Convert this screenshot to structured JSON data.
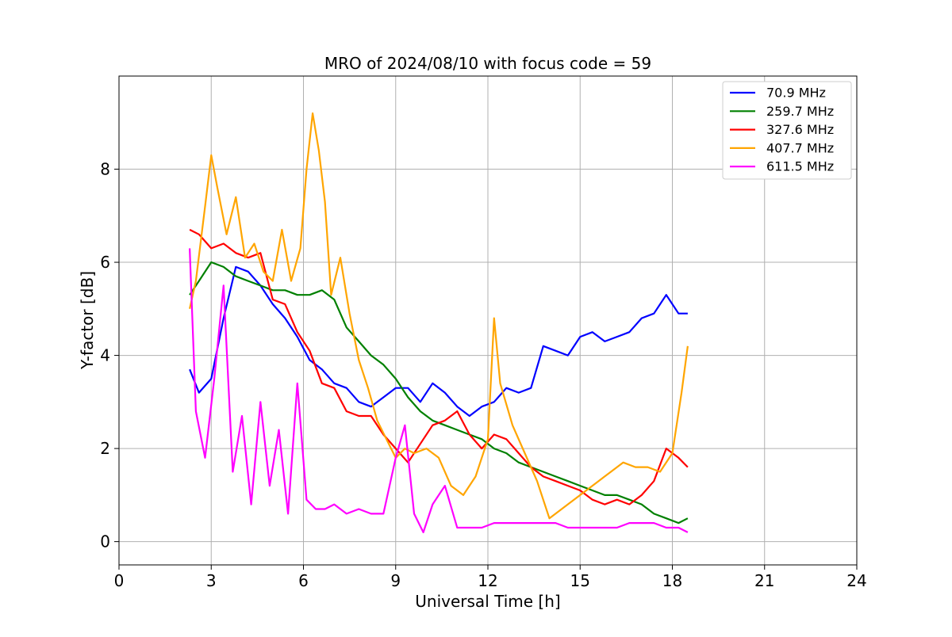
{
  "chart_data": {
    "type": "line",
    "title": "MRO of 2024/08/10 with focus code = 59",
    "xlabel": "Universal Time [h]",
    "ylabel": "Y-factor [dB]",
    "xlim": [
      0,
      24
    ],
    "ylim": [
      -0.5,
      10
    ],
    "xticks": [
      0,
      3,
      6,
      9,
      12,
      15,
      18,
      21,
      24
    ],
    "yticks": [
      0,
      2,
      4,
      6,
      8
    ],
    "grid": true,
    "legend_position": "top-right",
    "series": [
      {
        "name": " 70.9 MHz",
        "color": "#0000ff",
        "x": [
          2.3,
          2.6,
          3.0,
          3.4,
          3.8,
          4.2,
          4.6,
          5.0,
          5.4,
          5.8,
          6.2,
          6.6,
          7.0,
          7.4,
          7.8,
          8.2,
          8.6,
          9.0,
          9.4,
          9.8,
          10.2,
          10.6,
          11.0,
          11.4,
          11.8,
          12.2,
          12.6,
          13.0,
          13.4,
          13.8,
          14.2,
          14.6,
          15.0,
          15.4,
          15.8,
          16.2,
          16.6,
          17.0,
          17.4,
          17.8,
          18.2,
          18.5
        ],
        "y": [
          3.7,
          3.2,
          3.5,
          4.8,
          5.9,
          5.8,
          5.5,
          5.1,
          4.8,
          4.4,
          3.9,
          3.7,
          3.4,
          3.3,
          3.0,
          2.9,
          3.1,
          3.3,
          3.3,
          3.0,
          3.4,
          3.2,
          2.9,
          2.7,
          2.9,
          3.0,
          3.3,
          3.2,
          3.3,
          4.2,
          4.1,
          4.0,
          4.4,
          4.5,
          4.3,
          4.4,
          4.5,
          4.8,
          4.9,
          5.3,
          4.9,
          4.9
        ]
      },
      {
        "name": " 259.7 MHz",
        "color": "#008000",
        "x": [
          2.3,
          2.6,
          3.0,
          3.4,
          3.8,
          4.2,
          4.6,
          5.0,
          5.4,
          5.8,
          6.2,
          6.6,
          7.0,
          7.4,
          7.8,
          8.2,
          8.6,
          9.0,
          9.4,
          9.8,
          10.2,
          10.6,
          11.0,
          11.4,
          11.8,
          12.2,
          12.6,
          13.0,
          13.4,
          13.8,
          14.2,
          14.6,
          15.0,
          15.4,
          15.8,
          16.2,
          16.6,
          17.0,
          17.4,
          17.8,
          18.2,
          18.5
        ],
        "y": [
          5.3,
          5.6,
          6.0,
          5.9,
          5.7,
          5.6,
          5.5,
          5.4,
          5.4,
          5.3,
          5.3,
          5.4,
          5.2,
          4.6,
          4.3,
          4.0,
          3.8,
          3.5,
          3.1,
          2.8,
          2.6,
          2.5,
          2.4,
          2.3,
          2.2,
          2.0,
          1.9,
          1.7,
          1.6,
          1.5,
          1.4,
          1.3,
          1.2,
          1.1,
          1.0,
          1.0,
          0.9,
          0.8,
          0.6,
          0.5,
          0.4,
          0.5
        ]
      },
      {
        "name": " 327.6 MHz",
        "color": "#ff0000",
        "x": [
          2.3,
          2.6,
          3.0,
          3.4,
          3.8,
          4.2,
          4.6,
          5.0,
          5.4,
          5.8,
          6.2,
          6.6,
          7.0,
          7.4,
          7.8,
          8.2,
          8.6,
          9.0,
          9.4,
          9.8,
          10.2,
          10.6,
          11.0,
          11.4,
          11.8,
          12.2,
          12.6,
          13.0,
          13.4,
          13.8,
          14.2,
          14.6,
          15.0,
          15.4,
          15.8,
          16.2,
          16.6,
          17.0,
          17.4,
          17.8,
          18.2,
          18.5
        ],
        "y": [
          6.7,
          6.6,
          6.3,
          6.4,
          6.2,
          6.1,
          6.2,
          5.2,
          5.1,
          4.5,
          4.1,
          3.4,
          3.3,
          2.8,
          2.7,
          2.7,
          2.3,
          2.0,
          1.7,
          2.1,
          2.5,
          2.6,
          2.8,
          2.3,
          2.0,
          2.3,
          2.2,
          1.9,
          1.6,
          1.4,
          1.3,
          1.2,
          1.1,
          0.9,
          0.8,
          0.9,
          0.8,
          1.0,
          1.3,
          2.0,
          1.8,
          1.6
        ]
      },
      {
        "name": " 407.7 MHz",
        "color": "#ffa500",
        "x": [
          2.3,
          2.5,
          2.8,
          3.0,
          3.2,
          3.5,
          3.8,
          4.1,
          4.4,
          4.7,
          5.0,
          5.3,
          5.6,
          5.9,
          6.1,
          6.3,
          6.5,
          6.7,
          6.9,
          7.2,
          7.5,
          7.8,
          8.1,
          8.4,
          8.7,
          9.0,
          9.3,
          9.6,
          10.0,
          10.4,
          10.8,
          11.2,
          11.6,
          12.0,
          12.2,
          12.4,
          12.8,
          13.2,
          13.6,
          14.0,
          14.4,
          14.8,
          15.2,
          15.6,
          16.0,
          16.4,
          16.8,
          17.2,
          17.6,
          18.0,
          18.3,
          18.5
        ],
        "y": [
          5.0,
          5.6,
          7.2,
          8.3,
          7.6,
          6.6,
          7.4,
          6.1,
          6.4,
          5.8,
          5.6,
          6.7,
          5.6,
          6.3,
          8.0,
          9.2,
          8.4,
          7.3,
          5.3,
          6.1,
          4.9,
          3.9,
          3.3,
          2.6,
          2.2,
          1.8,
          2.0,
          1.9,
          2.0,
          1.8,
          1.2,
          1.0,
          1.4,
          2.2,
          4.8,
          3.4,
          2.5,
          1.9,
          1.3,
          0.5,
          0.7,
          0.9,
          1.1,
          1.3,
          1.5,
          1.7,
          1.6,
          1.6,
          1.5,
          1.9,
          3.2,
          4.2
        ]
      },
      {
        "name": " 611.5 MHz",
        "color": "#ff00ff",
        "x": [
          2.3,
          2.5,
          2.8,
          3.1,
          3.4,
          3.7,
          4.0,
          4.3,
          4.6,
          4.9,
          5.2,
          5.5,
          5.8,
          6.1,
          6.4,
          6.7,
          7.0,
          7.4,
          7.8,
          8.2,
          8.6,
          9.0,
          9.3,
          9.6,
          9.9,
          10.2,
          10.6,
          11.0,
          11.4,
          11.8,
          12.2,
          12.6,
          13.0,
          13.4,
          13.8,
          14.2,
          14.6,
          15.0,
          15.4,
          15.8,
          16.2,
          16.6,
          17.0,
          17.4,
          17.8,
          18.2,
          18.5
        ],
        "y": [
          6.3,
          2.8,
          1.8,
          3.5,
          5.5,
          1.5,
          2.7,
          0.8,
          3.0,
          1.2,
          2.4,
          0.6,
          3.4,
          0.9,
          0.7,
          0.7,
          0.8,
          0.6,
          0.7,
          0.6,
          0.6,
          1.8,
          2.5,
          0.6,
          0.2,
          0.8,
          1.2,
          0.3,
          0.3,
          0.3,
          0.4,
          0.4,
          0.4,
          0.4,
          0.4,
          0.4,
          0.3,
          0.3,
          0.3,
          0.3,
          0.3,
          0.4,
          0.4,
          0.4,
          0.3,
          0.3,
          0.2
        ]
      }
    ]
  }
}
